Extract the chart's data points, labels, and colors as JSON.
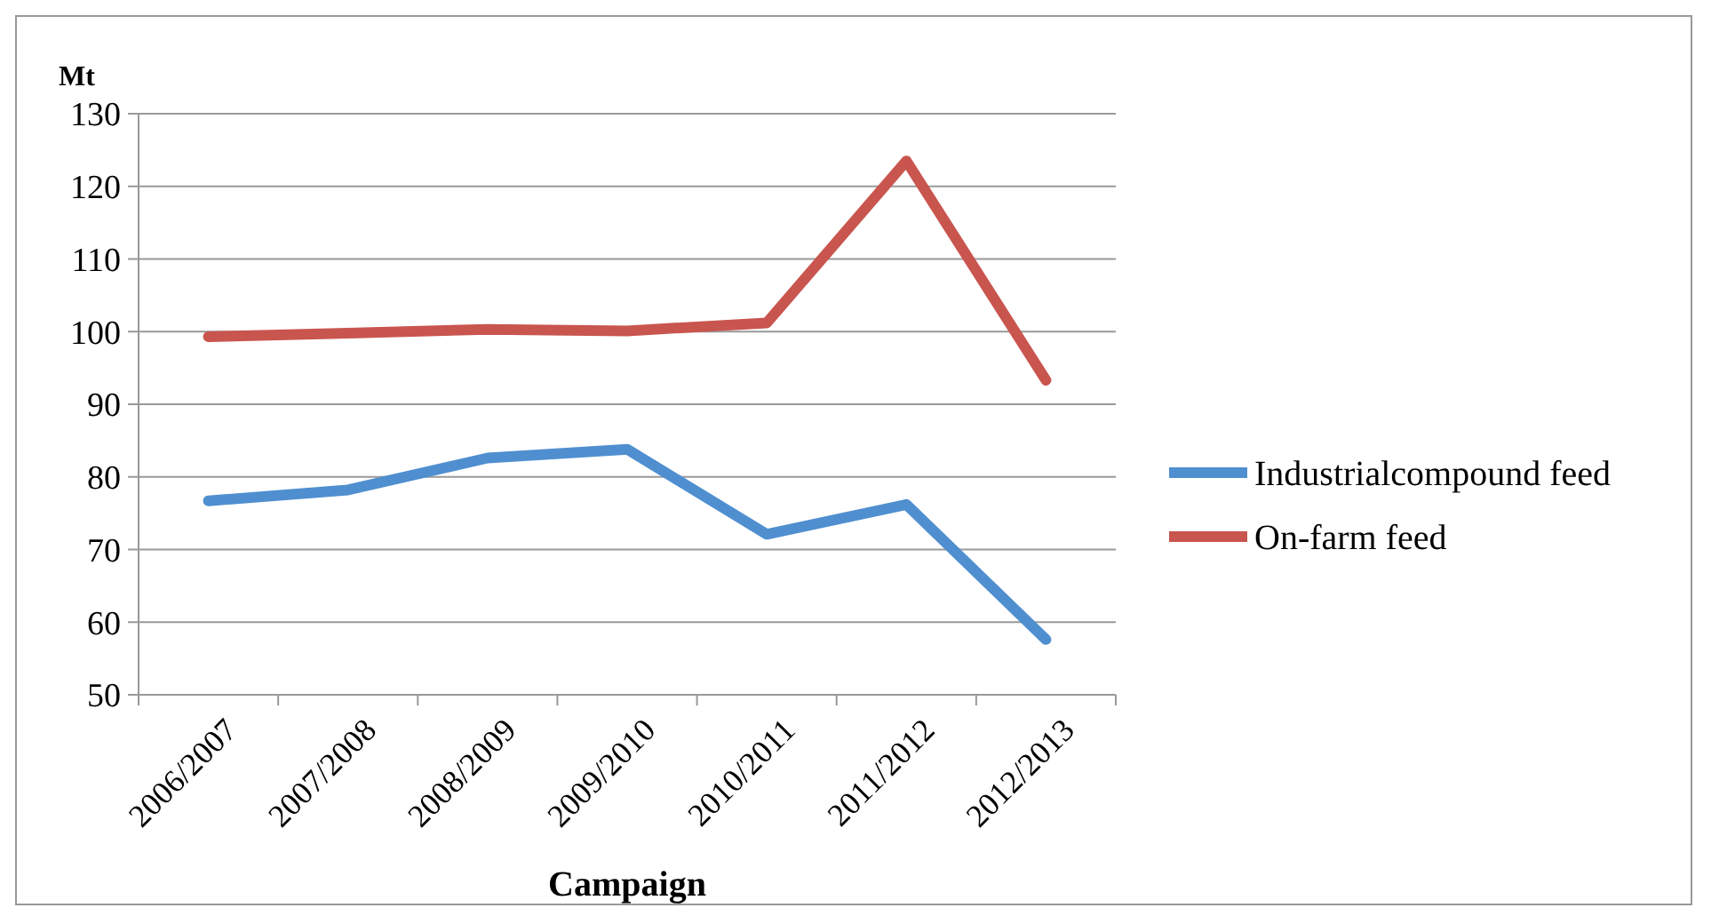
{
  "chart_data": {
    "type": "line",
    "ylabel": "Mt",
    "xlabel": "Campaign",
    "categories": [
      "2006/2007",
      "2007/2008",
      "2008/2009",
      "2009/2010",
      "2010/2011",
      "2011/2012",
      "2012/2013"
    ],
    "series": [
      {
        "name": "Industrialcompound feed",
        "color": "#4f8fd0",
        "values": [
          76.7,
          78.2,
          82.6,
          83.8,
          72.1,
          76.2,
          57.6
        ]
      },
      {
        "name": "On-farm feed",
        "color": "#c9554f",
        "values": [
          99.3,
          99.8,
          100.3,
          100.1,
          101.2,
          123.5,
          93.3
        ]
      }
    ],
    "ylim": [
      50,
      130
    ],
    "yticks": [
      50,
      60,
      70,
      80,
      90,
      100,
      110,
      120,
      130
    ],
    "grid": "y",
    "legend": "right",
    "line_style": "solid",
    "marker": "none"
  }
}
